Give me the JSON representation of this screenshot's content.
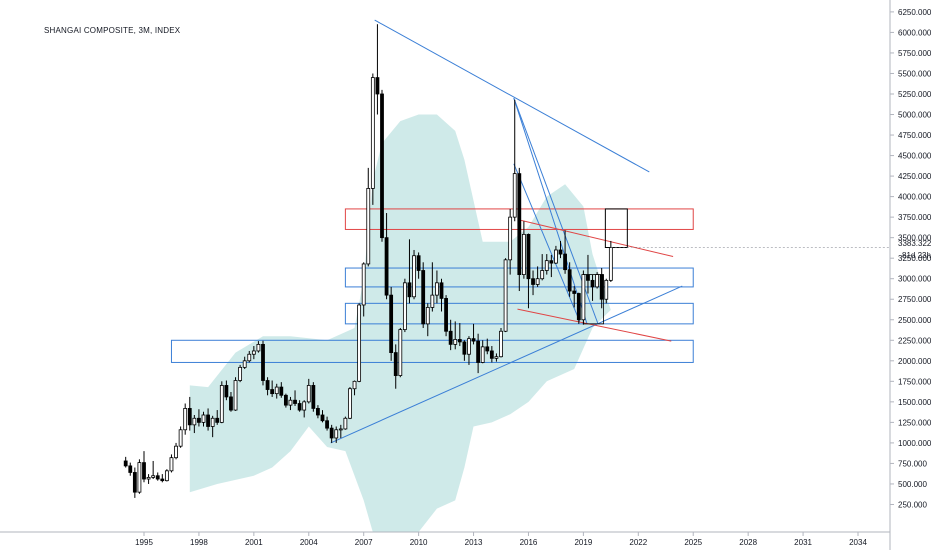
{
  "chart_data": {
    "type": "candlestick",
    "title": "SHANGAI COMPOSITE, 3M, INDEX",
    "x_ticks": [
      "1995",
      "1998",
      "2001",
      "2004",
      "2007",
      "2010",
      "2013",
      "2016",
      "2019",
      "2022",
      "2025",
      "2028",
      "2031",
      "2034"
    ],
    "y_ticks": [
      "250.000",
      "500.000",
      "750.000",
      "1000.000",
      "1250.000",
      "1500.000",
      "1750.000",
      "2000.000",
      "2250.000",
      "2500.000",
      "2750.000",
      "3000.000",
      "3250.000",
      "3500.000",
      "3750.000",
      "4000.000",
      "4250.000",
      "4500.000",
      "4750.000",
      "5000.000",
      "5250.000",
      "5500.000",
      "5750.000",
      "6000.000",
      "6250.000"
    ],
    "x_range": [
      1992.0,
      2037.5
    ],
    "y_range": [
      0,
      6450
    ],
    "last_price": "3383.322",
    "countdown": "81d 23h",
    "candles": [
      [
        1994.0,
        780,
        830,
        700,
        720
      ],
      [
        1994.25,
        720,
        760,
        600,
        640
      ],
      [
        1994.5,
        640,
        700,
        330,
        400
      ],
      [
        1994.75,
        400,
        800,
        380,
        760
      ],
      [
        1995.0,
        760,
        900,
        520,
        560
      ],
      [
        1995.25,
        560,
        620,
        500,
        580
      ],
      [
        1995.5,
        580,
        780,
        560,
        600
      ],
      [
        1995.75,
        600,
        640,
        540,
        560
      ],
      [
        1996.0,
        560,
        620,
        520,
        540
      ],
      [
        1996.25,
        540,
        680,
        530,
        660
      ],
      [
        1996.5,
        660,
        860,
        640,
        820
      ],
      [
        1996.75,
        820,
        1000,
        800,
        960
      ],
      [
        1997.0,
        960,
        1200,
        940,
        1160
      ],
      [
        1997.25,
        1160,
        1480,
        1100,
        1420
      ],
      [
        1997.5,
        1420,
        1560,
        1150,
        1220
      ],
      [
        1997.75,
        1220,
        1340,
        1120,
        1300
      ],
      [
        1998.0,
        1300,
        1410,
        1200,
        1250
      ],
      [
        1998.25,
        1250,
        1380,
        1200,
        1340
      ],
      [
        1998.5,
        1340,
        1420,
        1150,
        1200
      ],
      [
        1998.75,
        1200,
        1330,
        1070,
        1300
      ],
      [
        1999.0,
        1300,
        1400,
        1220,
        1250
      ],
      [
        1999.25,
        1250,
        1750,
        1240,
        1700
      ],
      [
        1999.5,
        1700,
        1760,
        1520,
        1560
      ],
      [
        1999.75,
        1560,
        1620,
        1380,
        1400
      ],
      [
        2000.0,
        1400,
        1800,
        1390,
        1760
      ],
      [
        2000.25,
        1760,
        1950,
        1740,
        1920
      ],
      [
        2000.5,
        1920,
        2050,
        1900,
        2000
      ],
      [
        2000.75,
        2000,
        2120,
        1980,
        2080
      ],
      [
        2001.0,
        2080,
        2180,
        2020,
        2120
      ],
      [
        2001.25,
        2120,
        2240,
        2100,
        2200
      ],
      [
        2001.5,
        2200,
        2245,
        1700,
        1760
      ],
      [
        2001.75,
        1760,
        1800,
        1580,
        1650
      ],
      [
        2002.0,
        1650,
        1760,
        1560,
        1600
      ],
      [
        2002.25,
        1600,
        1720,
        1540,
        1680
      ],
      [
        2002.5,
        1680,
        1740,
        1550,
        1580
      ],
      [
        2002.75,
        1580,
        1600,
        1430,
        1460
      ],
      [
        2003.0,
        1460,
        1560,
        1400,
        1520
      ],
      [
        2003.25,
        1520,
        1640,
        1450,
        1480
      ],
      [
        2003.5,
        1480,
        1520,
        1380,
        1400
      ],
      [
        2003.75,
        1400,
        1520,
        1310,
        1500
      ],
      [
        2004.0,
        1500,
        1780,
        1480,
        1700
      ],
      [
        2004.25,
        1700,
        1740,
        1380,
        1420
      ],
      [
        2004.5,
        1420,
        1460,
        1300,
        1340
      ],
      [
        2004.75,
        1340,
        1400,
        1250,
        1270
      ],
      [
        2005.0,
        1270,
        1320,
        1150,
        1180
      ],
      [
        2005.25,
        1180,
        1220,
        1000,
        1060
      ],
      [
        2005.5,
        1060,
        1200,
        1000,
        1160
      ],
      [
        2005.75,
        1160,
        1220,
        1060,
        1170
      ],
      [
        2006.0,
        1170,
        1320,
        1160,
        1300
      ],
      [
        2006.25,
        1300,
        1680,
        1290,
        1660
      ],
      [
        2006.5,
        1660,
        1760,
        1580,
        1750
      ],
      [
        2006.75,
        1750,
        2700,
        1740,
        2680
      ],
      [
        2007.0,
        2680,
        3200,
        2540,
        3180
      ],
      [
        2007.25,
        3180,
        4350,
        3150,
        4100
      ],
      [
        2007.5,
        4100,
        5500,
        3900,
        5450
      ],
      [
        2007.75,
        5450,
        6100,
        5000,
        5250
      ],
      [
        2008.0,
        5250,
        5300,
        3450,
        3500
      ],
      [
        2008.25,
        3500,
        3800,
        2750,
        2800
      ],
      [
        2008.5,
        2800,
        2900,
        2000,
        2100
      ],
      [
        2008.75,
        2100,
        2200,
        1660,
        1820
      ],
      [
        2009.0,
        1820,
        2400,
        1800,
        2380
      ],
      [
        2009.25,
        2380,
        3000,
        2350,
        2950
      ],
      [
        2009.5,
        2950,
        3480,
        2700,
        2780
      ],
      [
        2009.75,
        2780,
        3350,
        2750,
        3280
      ],
      [
        2010.0,
        3280,
        3320,
        3000,
        3100
      ],
      [
        2010.25,
        3100,
        3200,
        2400,
        2450
      ],
      [
        2010.5,
        2450,
        2700,
        2300,
        2650
      ],
      [
        2010.75,
        2650,
        3200,
        2600,
        2800
      ],
      [
        2011.0,
        2800,
        3100,
        2700,
        2950
      ],
      [
        2011.25,
        2950,
        3000,
        2600,
        2760
      ],
      [
        2011.5,
        2760,
        2800,
        2300,
        2360
      ],
      [
        2011.75,
        2360,
        2500,
        2130,
        2200
      ],
      [
        2012.0,
        2200,
        2480,
        2140,
        2260
      ],
      [
        2012.25,
        2260,
        2460,
        2180,
        2230
      ],
      [
        2012.5,
        2230,
        2250,
        2000,
        2080
      ],
      [
        2012.75,
        2080,
        2300,
        1950,
        2270
      ],
      [
        2013.0,
        2270,
        2450,
        2200,
        2240
      ],
      [
        2013.25,
        2240,
        2330,
        1850,
        1980
      ],
      [
        2013.5,
        1980,
        2250,
        1970,
        2170
      ],
      [
        2013.75,
        2170,
        2270,
        2080,
        2120
      ],
      [
        2014.0,
        2120,
        2180,
        1980,
        2030
      ],
      [
        2014.25,
        2030,
        2090,
        1990,
        2050
      ],
      [
        2014.5,
        2050,
        2400,
        2040,
        2360
      ],
      [
        2014.75,
        2360,
        3250,
        2350,
        3230
      ],
      [
        2015.0,
        3230,
        3850,
        3050,
        3750
      ],
      [
        2015.25,
        3750,
        5180,
        3700,
        4280
      ],
      [
        2015.5,
        4280,
        4350,
        2850,
        3050
      ],
      [
        2015.75,
        3050,
        3700,
        3000,
        3540
      ],
      [
        2016.0,
        3540,
        3550,
        2640,
        3000
      ],
      [
        2016.25,
        3000,
        3100,
        2800,
        2930
      ],
      [
        2016.5,
        2930,
        3150,
        2900,
        3000
      ],
      [
        2016.75,
        3000,
        3300,
        2980,
        3100
      ],
      [
        2017.0,
        3100,
        3300,
        3050,
        3220
      ],
      [
        2017.25,
        3220,
        3290,
        3020,
        3190
      ],
      [
        2017.5,
        3190,
        3400,
        3180,
        3350
      ],
      [
        2017.75,
        3350,
        3460,
        3250,
        3300
      ],
      [
        2018.0,
        3300,
        3590,
        3060,
        3110
      ],
      [
        2018.25,
        3110,
        3200,
        2780,
        2850
      ],
      [
        2018.5,
        2850,
        2910,
        2650,
        2820
      ],
      [
        2018.75,
        2820,
        2830,
        2450,
        2500
      ],
      [
        2019.0,
        2500,
        3100,
        2440,
        3050
      ],
      [
        2019.25,
        3050,
        3290,
        2820,
        2980
      ],
      [
        2019.5,
        2980,
        3050,
        2730,
        2900
      ],
      [
        2019.75,
        2900,
        3080,
        2880,
        3050
      ],
      [
        2020.0,
        3050,
        3130,
        2640,
        2750
      ],
      [
        2020.25,
        2750,
        3000,
        2700,
        2980
      ],
      [
        2020.5,
        2980,
        3460,
        2960,
        3380
      ]
    ],
    "cloud_upper": [
      [
        1997.5,
        1700
      ],
      [
        1998.5,
        1680
      ],
      [
        2000.0,
        2100
      ],
      [
        2001.5,
        2300
      ],
      [
        2003.0,
        2300
      ],
      [
        2005.0,
        2250
      ],
      [
        2006.5,
        2400
      ],
      [
        2007.0,
        3000
      ],
      [
        2007.5,
        4200
      ],
      [
        2008.0,
        4650
      ],
      [
        2009.0,
        4920
      ],
      [
        2010.0,
        5000
      ],
      [
        2011.0,
        5000
      ],
      [
        2012.0,
        4800
      ],
      [
        2012.5,
        4450
      ],
      [
        2013.5,
        3450
      ],
      [
        2015.0,
        3450
      ],
      [
        2016.0,
        3630
      ],
      [
        2017.0,
        4000
      ],
      [
        2018.0,
        4150
      ],
      [
        2019.0,
        3880
      ],
      [
        2019.5,
        3300
      ],
      [
        2020.0,
        2950
      ],
      [
        2020.5,
        2620
      ]
    ],
    "cloud_lower": [
      [
        2020.5,
        2620
      ],
      [
        2019.5,
        2400
      ],
      [
        2018.5,
        1900
      ],
      [
        2017.0,
        1750
      ],
      [
        2016.0,
        1500
      ],
      [
        2015.0,
        1350
      ],
      [
        2014.0,
        1250
      ],
      [
        2013.0,
        1200
      ],
      [
        2012.5,
        700
      ],
      [
        2012.0,
        300
      ],
      [
        2011.0,
        200
      ],
      [
        2010.0,
        -100
      ],
      [
        2009.0,
        -100
      ],
      [
        2008.0,
        -100
      ],
      [
        2007.5,
        -100
      ],
      [
        2007.0,
        300
      ],
      [
        2006.0,
        900
      ],
      [
        2005.0,
        950
      ],
      [
        2004.0,
        1200
      ],
      [
        2003.0,
        900
      ],
      [
        2002.0,
        700
      ],
      [
        2001.0,
        600
      ],
      [
        1999.0,
        500
      ],
      [
        1997.5,
        400
      ]
    ],
    "red_zones": [
      [
        3600,
        3850
      ],
      [
        2000,
        2250
      ]
    ],
    "blue_zones": [
      [
        2900,
        3130
      ],
      [
        2450,
        2700
      ],
      [
        1980,
        2250
      ]
    ],
    "blue_zone_ranges": [
      [
        2006.0,
        2025.0
      ],
      [
        2006.0,
        2025.0
      ],
      [
        1996.5,
        2025.0
      ]
    ],
    "red_zone_range": [
      2006.0,
      2025.0
    ],
    "blue_lines": [
      [
        [
          2007.6,
          6150
        ],
        [
          2022.6,
          4300
        ]
      ],
      [
        [
          2005.2,
          1000
        ],
        [
          2024.4,
          2910
        ]
      ],
      [
        [
          2015.2,
          5200
        ],
        [
          2019.2,
          2450
        ]
      ],
      [
        [
          2015.2,
          5200
        ],
        [
          2019.8,
          2450
        ]
      ],
      [
        [
          2015.2,
          4400
        ],
        [
          2018.8,
          2480
        ]
      ]
    ],
    "red_lines": [
      [
        [
          2015.6,
          3710
        ],
        [
          2023.9,
          3270
        ]
      ],
      [
        [
          2015.4,
          2630
        ],
        [
          2023.8,
          2240
        ]
      ]
    ],
    "black_box": [
      [
        2020.2,
        3380
      ],
      [
        2021.4,
        3850
      ]
    ],
    "small_box": [
      [
        2019.0,
        2450
      ],
      [
        2020.1,
        3050
      ]
    ]
  },
  "colors": {
    "bull": "#ffffff",
    "bear": "#000000",
    "cloud": "#bfe3e1",
    "blue": "#3b7fd6",
    "red": "#e04545",
    "axis_text": "#131722",
    "grid_border": "#b2b5be"
  }
}
